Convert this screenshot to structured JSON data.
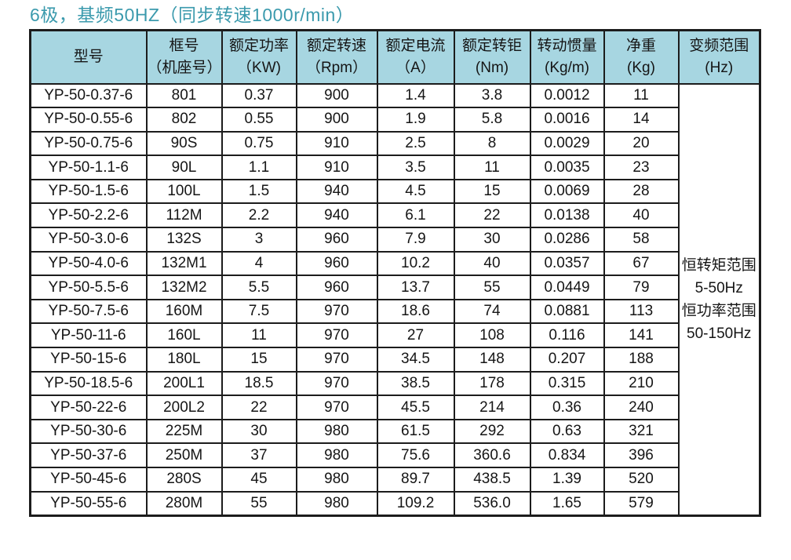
{
  "title": "6极，基频50HZ（同步转速1000r/min）",
  "colors": {
    "title_color": "#3b9aad",
    "header_bg": "#a7d6e1",
    "border_color": "#1c1c1c",
    "text_color": "#151515",
    "page_bg": "#ffffff"
  },
  "table": {
    "columns": [
      {
        "key": "model",
        "label": "型号"
      },
      {
        "key": "frame-number",
        "label": "框号",
        "unit": "（机座号）"
      },
      {
        "key": "rated-power",
        "label": "额定功率",
        "unit": "（KW)"
      },
      {
        "key": "rated-speed",
        "label": "额定转速",
        "unit": "（Rpm）"
      },
      {
        "key": "rated-current",
        "label": "额定电流",
        "unit": "（A）"
      },
      {
        "key": "rated-torque",
        "label": "额定转钜",
        "unit": "(Nm)"
      },
      {
        "key": "inertia",
        "label": "转动惯量",
        "unit": "(Kg/m)"
      },
      {
        "key": "net-weight",
        "label": "净重",
        "unit": "(Kg)"
      },
      {
        "key": "freq-range",
        "label": "变频范围",
        "unit": "(Hz)"
      }
    ],
    "rows": [
      [
        "YP-50-0.37-6",
        "801",
        "0.37",
        "900",
        "1.4",
        "3.8",
        "0.0012",
        "11"
      ],
      [
        "YP-50-0.55-6",
        "802",
        "0.55",
        "900",
        "1.9",
        "5.8",
        "0.0016",
        "14"
      ],
      [
        "YP-50-0.75-6",
        "90S",
        "0.75",
        "910",
        "2.5",
        "8",
        "0.0029",
        "20"
      ],
      [
        "YP-50-1.1-6",
        "90L",
        "1.1",
        "910",
        "3.5",
        "11",
        "0.0035",
        "23"
      ],
      [
        "YP-50-1.5-6",
        "100L",
        "1.5",
        "940",
        "4.5",
        "15",
        "0.0069",
        "28"
      ],
      [
        "YP-50-2.2-6",
        "112M",
        "2.2",
        "940",
        "6.1",
        "22",
        "0.0138",
        "40"
      ],
      [
        "YP-50-3.0-6",
        "132S",
        "3",
        "960",
        "7.9",
        "30",
        "0.0286",
        "58"
      ],
      [
        "YP-50-4.0-6",
        "132M1",
        "4",
        "960",
        "10.2",
        "40",
        "0.0357",
        "67"
      ],
      [
        "YP-50-5.5-6",
        "132M2",
        "5.5",
        "960",
        "13.7",
        "55",
        "0.0449",
        "79"
      ],
      [
        "YP-50-7.5-6",
        "160M",
        "7.5",
        "970",
        "18.6",
        "74",
        "0.0881",
        "113"
      ],
      [
        "YP-50-11-6",
        "160L",
        "11",
        "970",
        "27",
        "108",
        "0.116",
        "141"
      ],
      [
        "YP-50-15-6",
        "180L",
        "15",
        "970",
        "34.5",
        "148",
        "0.207",
        "188"
      ],
      [
        "YP-50-18.5-6",
        "200L1",
        "18.5",
        "970",
        "38.5",
        "178",
        "0.315",
        "210"
      ],
      [
        "YP-50-22-6",
        "200L2",
        "22",
        "970",
        "45.5",
        "214",
        "0.36",
        "240"
      ],
      [
        "YP-50-30-6",
        "225M",
        "30",
        "980",
        "61.5",
        "292",
        "0.63",
        "321"
      ],
      [
        "YP-50-37-6",
        "250M",
        "37",
        "980",
        "75.6",
        "360.6",
        "0.834",
        "396"
      ],
      [
        "YP-50-45-6",
        "280S",
        "45",
        "980",
        "89.7",
        "438.5",
        "1.39",
        "520"
      ],
      [
        "YP-50-55-6",
        "280M",
        "55",
        "980",
        "109.2",
        "536.0",
        "1.65",
        "579"
      ]
    ],
    "frequency_range_lines": [
      "恒转矩范围",
      "5-50Hz",
      "恒功率范围",
      "50-150Hz"
    ]
  }
}
